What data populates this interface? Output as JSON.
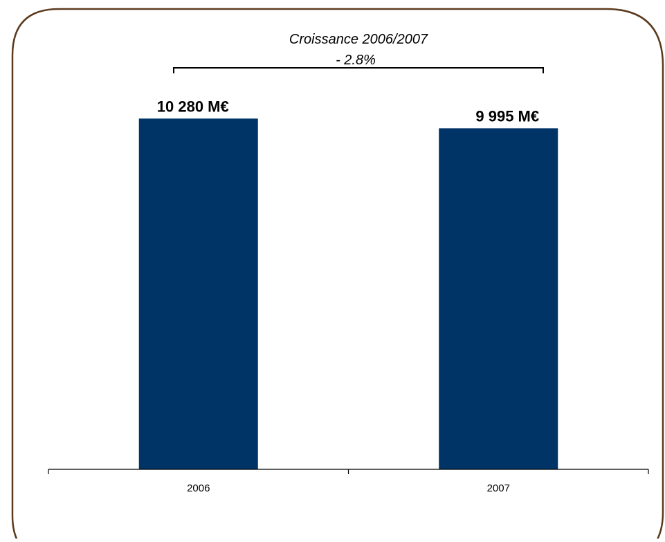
{
  "chart_data": {
    "type": "bar",
    "categories": [
      "2006",
      "2007"
    ],
    "values": [
      10280,
      9995
    ],
    "unit": "M€",
    "data_labels": [
      "10 280 M€",
      "9 995 M€"
    ],
    "ylim": [
      0,
      10900
    ],
    "grid": false,
    "legend": "none",
    "annotation": {
      "title": "Croissance 2006/2007",
      "value": "- 2.8%"
    }
  },
  "colors": {
    "bar": "#003366",
    "frame": "#5c3a1e",
    "axis": "#000000",
    "text": "#000000"
  }
}
